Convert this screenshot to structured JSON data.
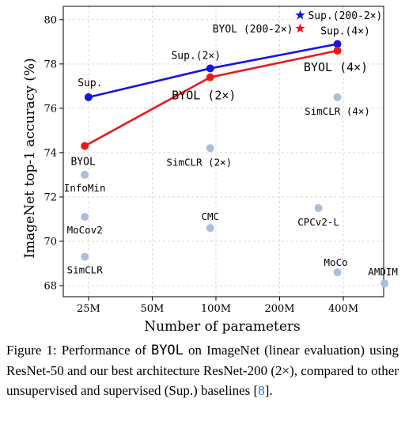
{
  "chart_data": {
    "type": "scatter",
    "xlabel": "Number of parameters",
    "ylabel": "ImageNet top-1 accuracy (%)",
    "x_scale": "log",
    "xlim": [
      19,
      620
    ],
    "ylim": [
      67.5,
      80.6
    ],
    "x_ticks": [
      {
        "value": 25,
        "label": "25M"
      },
      {
        "value": 50,
        "label": "50M"
      },
      {
        "value": 100,
        "label": "100M"
      },
      {
        "value": 200,
        "label": "200M"
      },
      {
        "value": 400,
        "label": "400M"
      }
    ],
    "y_ticks": [
      {
        "value": 68,
        "label": "68"
      },
      {
        "value": 70,
        "label": "70"
      },
      {
        "value": 72,
        "label": "72"
      },
      {
        "value": 74,
        "label": "74"
      },
      {
        "value": 76,
        "label": "76"
      },
      {
        "value": 78,
        "label": "78"
      },
      {
        "value": 80,
        "label": "80"
      }
    ],
    "grid": true,
    "series": [
      {
        "key": "sup",
        "color": "#1515e0",
        "points": [
          {
            "x": 25,
            "y": 76.5,
            "label": "Sup."
          },
          {
            "x": 94,
            "y": 77.8,
            "label": "Sup.(2×)"
          },
          {
            "x": 375,
            "y": 78.9,
            "label": "Sup.(4×)"
          }
        ]
      },
      {
        "key": "byol",
        "color": "#e81a1a",
        "points": [
          {
            "x": 24,
            "y": 74.3,
            "label": "BYOL"
          },
          {
            "x": 94,
            "y": 77.4,
            "label": "BYOL (2×)"
          },
          {
            "x": 375,
            "y": 78.6,
            "label": "BYOL (4×)"
          }
        ]
      }
    ],
    "baselines": [
      {
        "x": 24,
        "y": 73.0,
        "label": "InfoMin"
      },
      {
        "x": 24,
        "y": 71.1,
        "label": "MoCov2"
      },
      {
        "x": 24,
        "y": 69.3,
        "label": "SimCLR"
      },
      {
        "x": 94,
        "y": 74.2,
        "label": "SimCLR (2×)"
      },
      {
        "x": 94,
        "y": 70.6,
        "label": "CMC"
      },
      {
        "x": 375,
        "y": 76.5,
        "label": "SimCLR (4×)"
      },
      {
        "x": 305,
        "y": 71.5,
        "label": "CPCv2-L"
      },
      {
        "x": 375,
        "y": 68.6,
        "label": "MoCo"
      },
      {
        "x": 626,
        "y": 68.1,
        "label": "AMDIM"
      }
    ],
    "stars": [
      {
        "x": 250,
        "y": 80.2,
        "label": "Sup.(200-2×)",
        "color": "#1515e0"
      },
      {
        "x": 250,
        "y": 79.6,
        "label": "BYOL (200-2×)",
        "color": "#e81a1a"
      }
    ],
    "baseline_color": "#a9bfdc"
  },
  "caption": {
    "prefix": "Figure 1: Performance of ",
    "method": "BYOL",
    "middle": " on ImageNet (linear evaluation) using ResNet-50 and our best architecture ResNet-200 (2×), compared to other unsupervised and supervised (Sup.) baselines [",
    "ref": "8",
    "suffix": "]."
  }
}
